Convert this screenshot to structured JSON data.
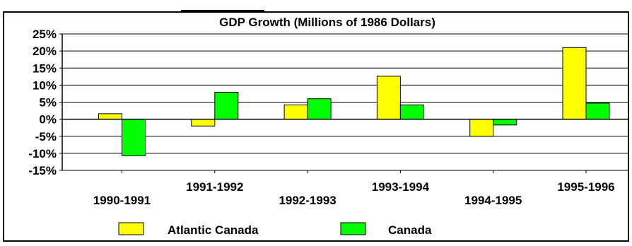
{
  "chart_data": {
    "type": "bar",
    "title": "GDP Growth (Millions of 1986 Dollars)",
    "categories": [
      "1990-1991",
      "1991-1992",
      "1992-1993",
      "1993-1994",
      "1994-1995",
      "1995-1996"
    ],
    "series": [
      {
        "name": "Atlantic Canada",
        "color": "#ffff00",
        "values": [
          1.6,
          -2.0,
          4.2,
          12.6,
          -5.0,
          21.0
        ]
      },
      {
        "name": "Canada",
        "color": "#00ff00",
        "values": [
          -10.7,
          7.9,
          6.0,
          4.2,
          -1.7,
          4.7
        ]
      }
    ],
    "ylim": [
      -15,
      25
    ],
    "yticks": [
      25,
      20,
      15,
      10,
      5,
      0,
      -5,
      -10,
      -15
    ],
    "ytick_format": "percent",
    "grid": true,
    "legend_position": "bottom"
  }
}
